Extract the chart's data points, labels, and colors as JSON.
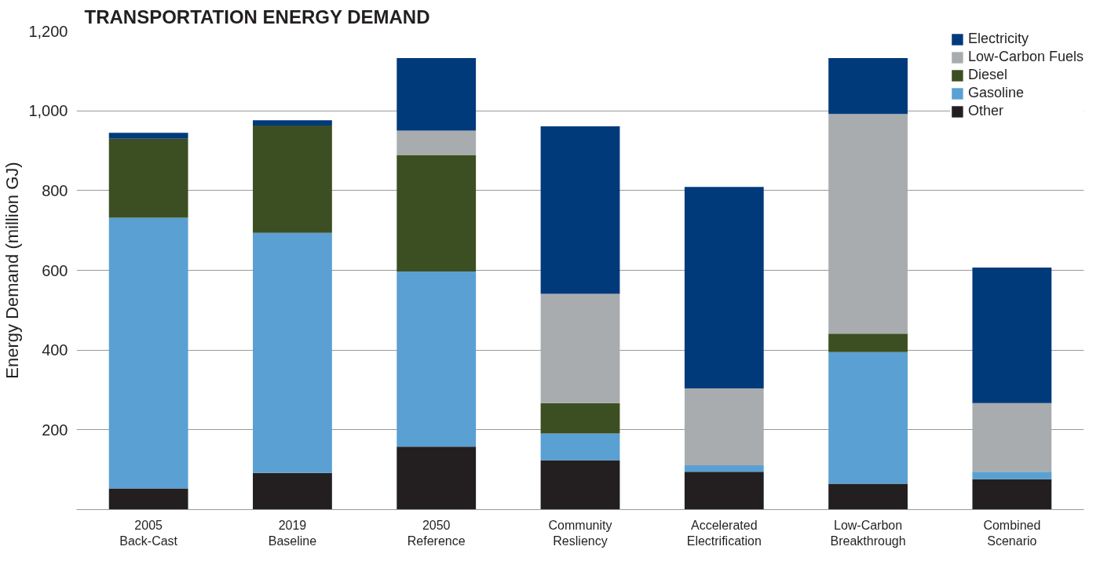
{
  "chart_data": {
    "type": "bar",
    "title": "TRANSPORTATION ENERGY DEMAND",
    "ylabel": "Energy Demand (million GJ)",
    "categories": [
      "2005\nBack-Cast",
      "2019\nBaseline",
      "2050\nReference",
      "Community\nResliency",
      "Accelerated\nElectrification",
      "Low-Carbon\nBreakthrough",
      "Combined\nScenario"
    ],
    "stacked": true,
    "series": [
      {
        "name": "Other",
        "color": "#231f20",
        "values": [
          53,
          92,
          158,
          124,
          95,
          65,
          76
        ]
      },
      {
        "name": "Gasoline",
        "color": "#5aa0d2",
        "values": [
          679,
          602,
          439,
          67,
          16,
          330,
          19
        ]
      },
      {
        "name": "Diesel",
        "color": "#3c4f22",
        "values": [
          198,
          269,
          292,
          76,
          0,
          46,
          0
        ]
      },
      {
        "name": "Low-Carbon Fuels",
        "color": "#a9acae",
        "values": [
          0,
          0,
          61,
          274,
          193,
          551,
          172
        ]
      },
      {
        "name": "Electricity",
        "color": "#003a7b",
        "values": [
          15,
          13,
          182,
          420,
          505,
          140,
          340
        ]
      }
    ],
    "ylim": [
      0,
      1200
    ],
    "yticks": [
      {
        "value": 0,
        "label": null
      },
      200,
      400,
      600,
      800,
      {
        "value": 1000,
        "label": "1,000"
      },
      {
        "value": 1200,
        "label": "1,200"
      }
    ],
    "grid": "y",
    "legend": "top right"
  }
}
